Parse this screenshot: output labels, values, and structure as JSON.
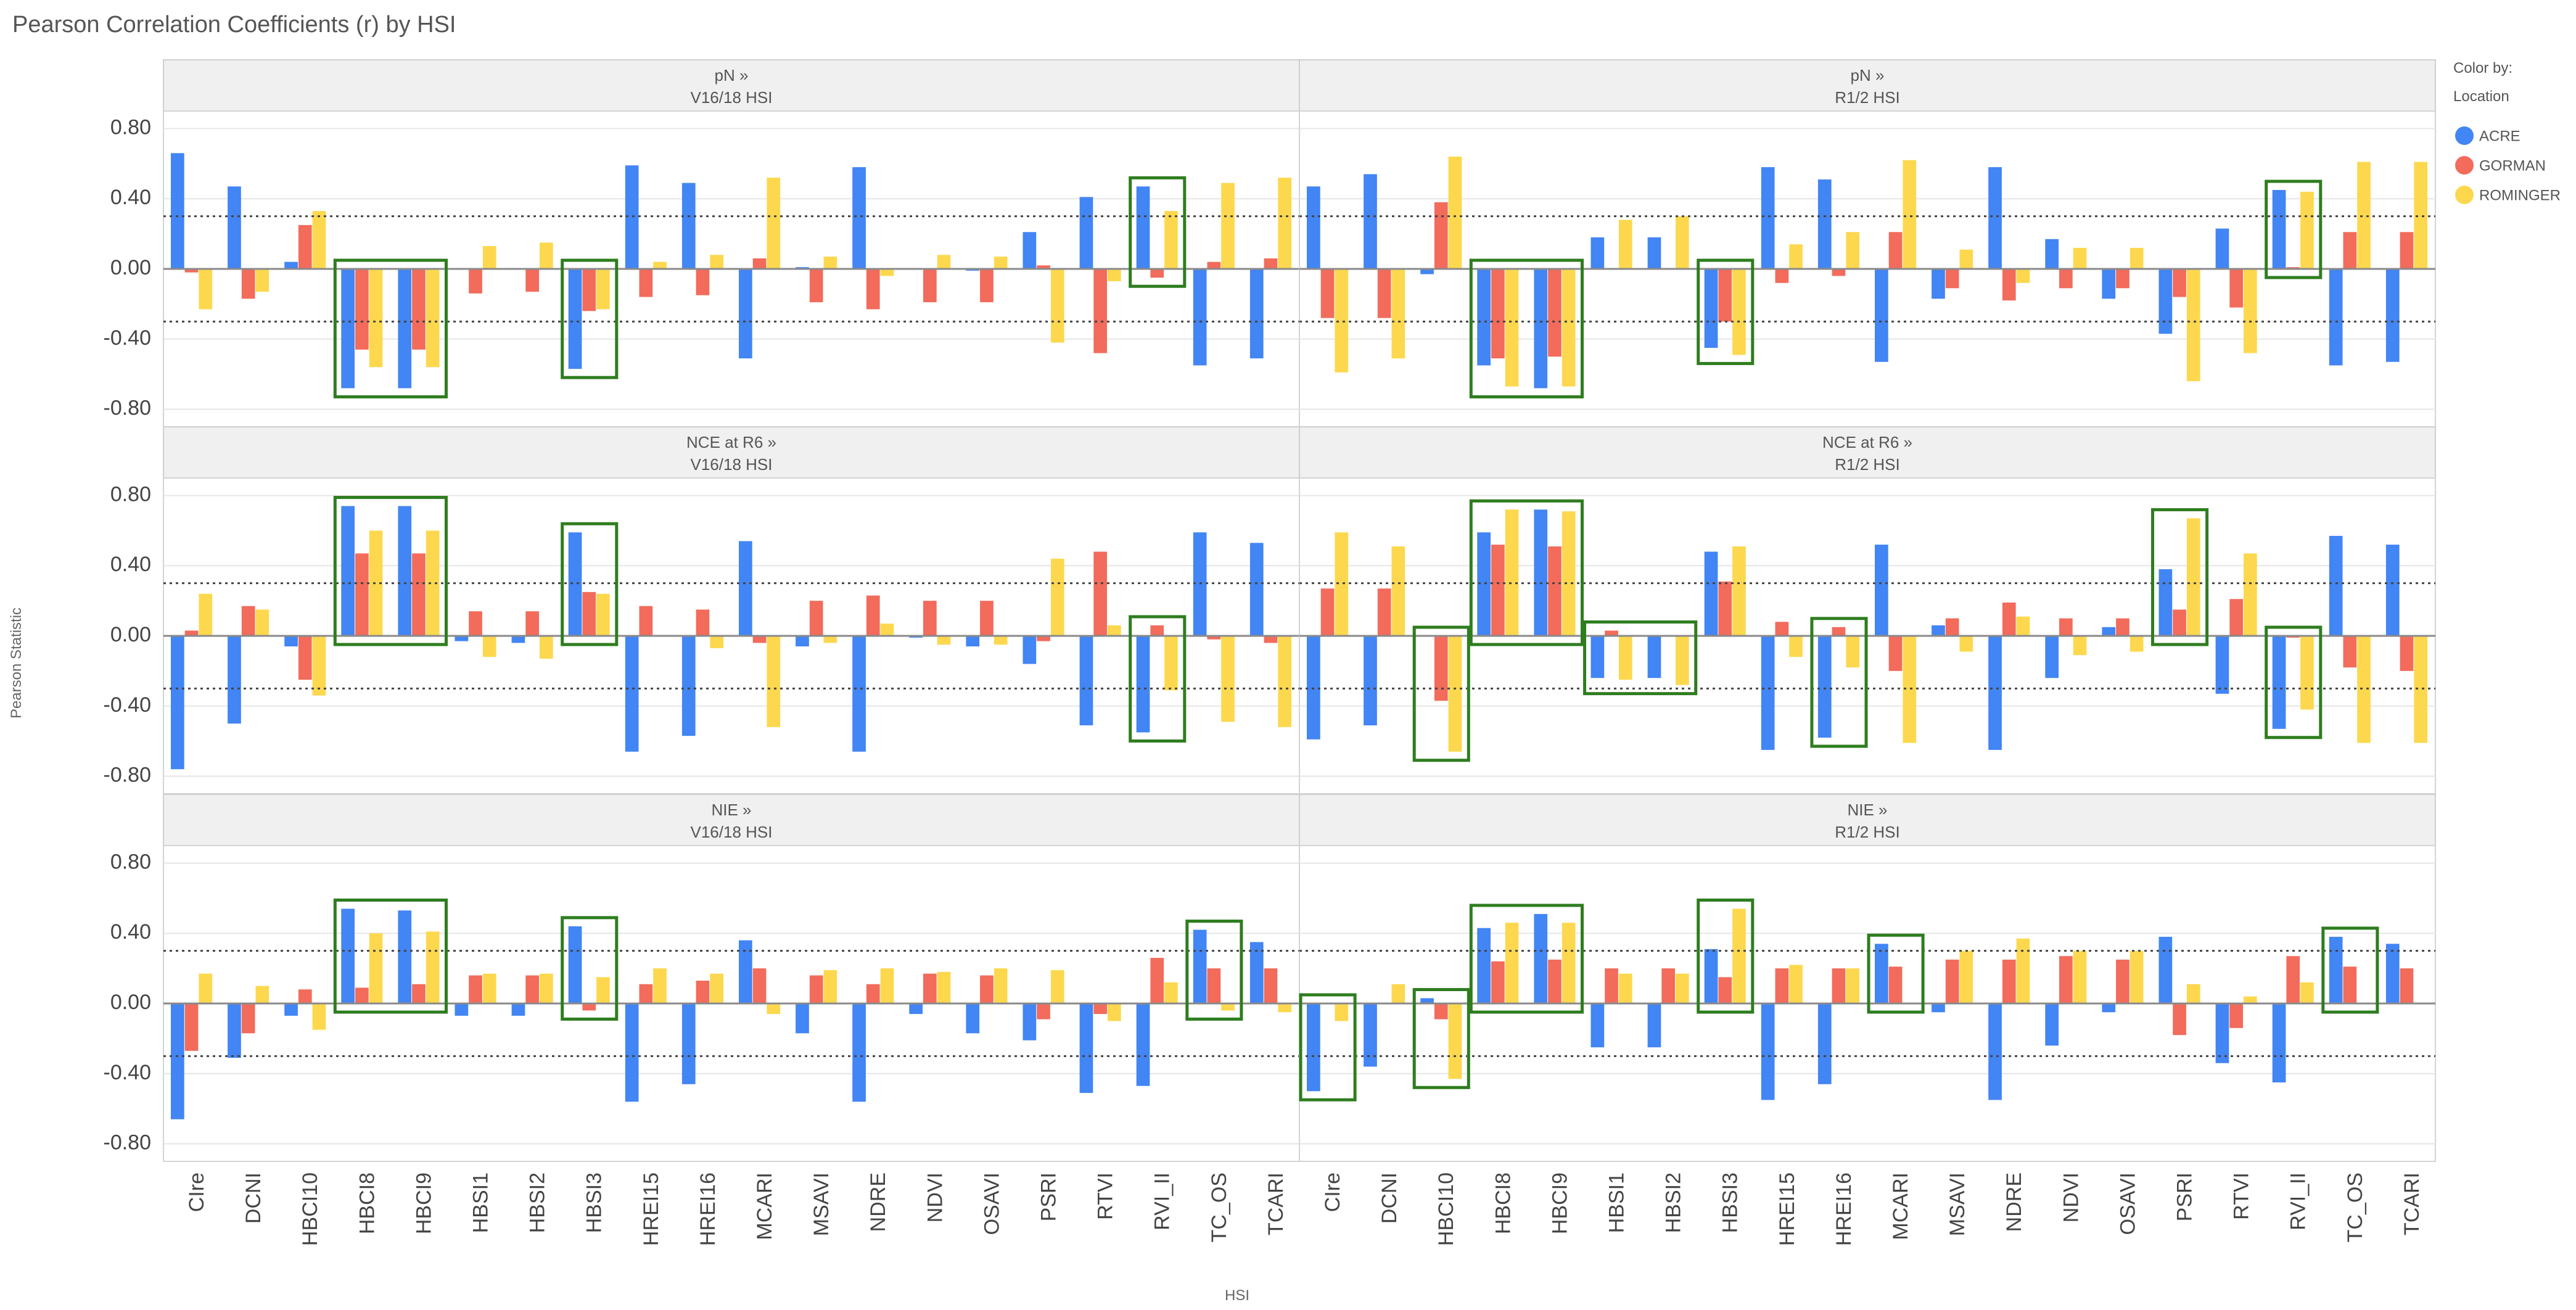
{
  "chart_data": {
    "type": "bar",
    "title": "Pearson Correlation Coefficients (r) by HSI",
    "xlabel": "HSI",
    "ylabel": "Pearson Statistic",
    "ylim": [
      -0.9,
      0.9
    ],
    "yticks": [
      0.8,
      0.4,
      0.0,
      -0.4,
      -0.8
    ],
    "ytick_labels": [
      "0.80",
      "0.40",
      "0.00",
      "-0.40",
      "-0.80"
    ],
    "reference_lines": [
      0.3,
      -0.3
    ],
    "legend": {
      "title_line1": "Color by:",
      "title_line2": "Location",
      "placement": "right"
    },
    "series": [
      {
        "name": "ACRE",
        "color": "#4285f4"
      },
      {
        "name": "GORMAN",
        "color": "#f26b5b"
      },
      {
        "name": "ROMINGER",
        "color": "#fdd84e"
      }
    ],
    "categories": [
      "CIre",
      "DCNI",
      "HBCI10",
      "HBCI8",
      "HBCI9",
      "HBSI1",
      "HBSI2",
      "HBSI3",
      "HREI15",
      "HREI16",
      "MCARI",
      "MSAVI",
      "NDRE",
      "NDVI",
      "OSAVI",
      "PSRI",
      "RTVI",
      "RVI_II",
      "TC_OS",
      "TCARI"
    ],
    "panels": [
      {
        "row": 0,
        "col": 0,
        "label_line1": "pN »",
        "label_line2": "V16/18 HSI",
        "values": [
          [
            0.66,
            -0.02,
            -0.23
          ],
          [
            0.47,
            -0.17,
            -0.13
          ],
          [
            0.04,
            0.25,
            0.33
          ],
          [
            -0.68,
            -0.46,
            -0.56
          ],
          [
            -0.68,
            -0.46,
            -0.56
          ],
          [
            0.0,
            -0.14,
            0.13
          ],
          [
            0.0,
            -0.13,
            0.15
          ],
          [
            -0.57,
            -0.24,
            -0.23
          ],
          [
            0.59,
            -0.16,
            0.04
          ],
          [
            0.49,
            -0.15,
            0.08
          ],
          [
            -0.51,
            0.06,
            0.52
          ],
          [
            0.01,
            -0.19,
            0.07
          ],
          [
            0.58,
            -0.23,
            -0.04
          ],
          [
            0.0,
            -0.19,
            0.08
          ],
          [
            -0.01,
            -0.19,
            0.07
          ],
          [
            0.21,
            0.02,
            -0.42
          ],
          [
            0.41,
            -0.48,
            -0.07
          ],
          [
            0.47,
            -0.05,
            0.33
          ],
          [
            -0.55,
            0.04,
            0.49
          ],
          [
            -0.51,
            0.06,
            0.52
          ]
        ],
        "highlights": [
          [
            3,
            4
          ],
          [
            7,
            7
          ],
          [
            17,
            17
          ]
        ]
      },
      {
        "row": 0,
        "col": 1,
        "label_line1": "pN »",
        "label_line2": "R1/2 HSI",
        "values": [
          [
            0.47,
            -0.28,
            -0.59
          ],
          [
            0.54,
            -0.28,
            -0.51
          ],
          [
            -0.03,
            0.38,
            0.64
          ],
          [
            -0.55,
            -0.51,
            -0.67
          ],
          [
            -0.68,
            -0.5,
            -0.67
          ],
          [
            0.18,
            0.0,
            0.28
          ],
          [
            0.18,
            0.0,
            0.3
          ],
          [
            -0.45,
            -0.3,
            -0.49
          ],
          [
            0.58,
            -0.08,
            0.14
          ],
          [
            0.51,
            -0.04,
            0.21
          ],
          [
            -0.53,
            0.21,
            0.62
          ],
          [
            -0.17,
            -0.11,
            0.11
          ],
          [
            0.58,
            -0.18,
            -0.08
          ],
          [
            0.17,
            -0.11,
            0.12
          ],
          [
            -0.17,
            -0.11,
            0.12
          ],
          [
            -0.37,
            -0.16,
            -0.64
          ],
          [
            0.23,
            -0.22,
            -0.48
          ],
          [
            0.45,
            0.01,
            0.44
          ],
          [
            -0.55,
            0.21,
            0.61
          ],
          [
            -0.53,
            0.21,
            0.61
          ]
        ],
        "highlights": [
          [
            3,
            4
          ],
          [
            7,
            7
          ],
          [
            17,
            17
          ]
        ]
      },
      {
        "row": 1,
        "col": 0,
        "label_line1": "NCE at R6 »",
        "label_line2": "V16/18 HSI",
        "values": [
          [
            -0.76,
            0.03,
            0.24
          ],
          [
            -0.5,
            0.17,
            0.15
          ],
          [
            -0.06,
            -0.25,
            -0.34
          ],
          [
            0.74,
            0.47,
            0.6
          ],
          [
            0.74,
            0.47,
            0.6
          ],
          [
            -0.03,
            0.14,
            -0.12
          ],
          [
            -0.04,
            0.14,
            -0.13
          ],
          [
            0.59,
            0.25,
            0.24
          ],
          [
            -0.66,
            0.17,
            0.0
          ],
          [
            -0.57,
            0.15,
            -0.07
          ],
          [
            0.54,
            -0.04,
            -0.52
          ],
          [
            -0.06,
            0.2,
            -0.04
          ],
          [
            -0.66,
            0.23,
            0.07
          ],
          [
            -0.01,
            0.2,
            -0.05
          ],
          [
            -0.06,
            0.2,
            -0.05
          ],
          [
            -0.16,
            -0.03,
            0.44
          ],
          [
            -0.51,
            0.48,
            0.06
          ],
          [
            -0.55,
            0.06,
            -0.31
          ],
          [
            0.59,
            -0.02,
            -0.49
          ],
          [
            0.53,
            -0.04,
            -0.52
          ]
        ],
        "highlights": [
          [
            3,
            4
          ],
          [
            7,
            7
          ],
          [
            17,
            17
          ]
        ]
      },
      {
        "row": 1,
        "col": 1,
        "label_line1": "NCE at R6 »",
        "label_line2": "R1/2 HSI",
        "values": [
          [
            -0.59,
            0.27,
            0.59
          ],
          [
            -0.51,
            0.27,
            0.51
          ],
          [
            0.0,
            -0.37,
            -0.66
          ],
          [
            0.59,
            0.52,
            0.72
          ],
          [
            0.72,
            0.51,
            0.71
          ],
          [
            -0.24,
            0.03,
            -0.25
          ],
          [
            -0.24,
            0.0,
            -0.28
          ],
          [
            0.48,
            0.31,
            0.51
          ],
          [
            -0.65,
            0.08,
            -0.12
          ],
          [
            -0.58,
            0.05,
            -0.18
          ],
          [
            0.52,
            -0.2,
            -0.61
          ],
          [
            0.06,
            0.1,
            -0.09
          ],
          [
            -0.65,
            0.19,
            0.11
          ],
          [
            -0.24,
            0.1,
            -0.11
          ],
          [
            0.05,
            0.1,
            -0.09
          ],
          [
            0.38,
            0.15,
            0.67
          ],
          [
            -0.33,
            0.21,
            0.47
          ],
          [
            -0.53,
            -0.01,
            -0.42
          ],
          [
            0.57,
            -0.18,
            -0.61
          ],
          [
            0.52,
            -0.2,
            -0.61
          ]
        ],
        "highlights": [
          [
            2,
            2
          ],
          [
            3,
            4
          ],
          [
            5,
            6
          ],
          [
            9,
            9
          ],
          [
            15,
            15
          ],
          [
            17,
            17
          ]
        ]
      },
      {
        "row": 2,
        "col": 0,
        "label_line1": "NIE »",
        "label_line2": "V16/18 HSI",
        "values": [
          [
            -0.66,
            -0.27,
            0.17
          ],
          [
            -0.31,
            -0.17,
            0.1
          ],
          [
            -0.07,
            0.08,
            -0.15
          ],
          [
            0.54,
            0.09,
            0.4
          ],
          [
            0.53,
            0.11,
            0.41
          ],
          [
            -0.07,
            0.16,
            0.17
          ],
          [
            -0.07,
            0.16,
            0.17
          ],
          [
            0.44,
            -0.04,
            0.15
          ],
          [
            -0.56,
            0.11,
            0.2
          ],
          [
            -0.46,
            0.13,
            0.17
          ],
          [
            0.36,
            0.2,
            -0.06
          ],
          [
            -0.17,
            0.16,
            0.19
          ],
          [
            -0.56,
            0.11,
            0.2
          ],
          [
            -0.06,
            0.17,
            0.18
          ],
          [
            -0.17,
            0.16,
            0.2
          ],
          [
            -0.21,
            -0.09,
            0.19
          ],
          [
            -0.51,
            -0.06,
            -0.1
          ],
          [
            -0.47,
            0.26,
            0.12
          ],
          [
            0.42,
            0.2,
            -0.04
          ],
          [
            0.35,
            0.2,
            -0.05
          ]
        ],
        "highlights": [
          [
            3,
            4
          ],
          [
            7,
            7
          ],
          [
            18,
            18
          ]
        ]
      },
      {
        "row": 2,
        "col": 1,
        "label_line1": "NIE »",
        "label_line2": "R1/2 HSI",
        "values": [
          [
            -0.5,
            0.0,
            -0.1
          ],
          [
            -0.36,
            0.0,
            0.11
          ],
          [
            0.03,
            -0.09,
            -0.43
          ],
          [
            0.43,
            0.24,
            0.46
          ],
          [
            0.51,
            0.25,
            0.46
          ],
          [
            -0.25,
            0.2,
            0.17
          ],
          [
            -0.25,
            0.2,
            0.17
          ],
          [
            0.31,
            0.15,
            0.54
          ],
          [
            -0.55,
            0.2,
            0.22
          ],
          [
            -0.46,
            0.2,
            0.2
          ],
          [
            0.34,
            0.21,
            0.0
          ],
          [
            -0.05,
            0.25,
            0.3
          ],
          [
            -0.55,
            0.25,
            0.37
          ],
          [
            -0.24,
            0.27,
            0.3
          ],
          [
            -0.05,
            0.25,
            0.3
          ],
          [
            0.38,
            -0.18,
            0.11
          ],
          [
            -0.34,
            -0.14,
            0.04
          ],
          [
            -0.45,
            0.27,
            0.12
          ],
          [
            0.38,
            0.21,
            0.0
          ],
          [
            0.34,
            0.2,
            0.0
          ]
        ],
        "highlights": [
          [
            0,
            0
          ],
          [
            2,
            2
          ],
          [
            3,
            4
          ],
          [
            7,
            7
          ],
          [
            10,
            10
          ],
          [
            18,
            18
          ]
        ]
      }
    ]
  }
}
